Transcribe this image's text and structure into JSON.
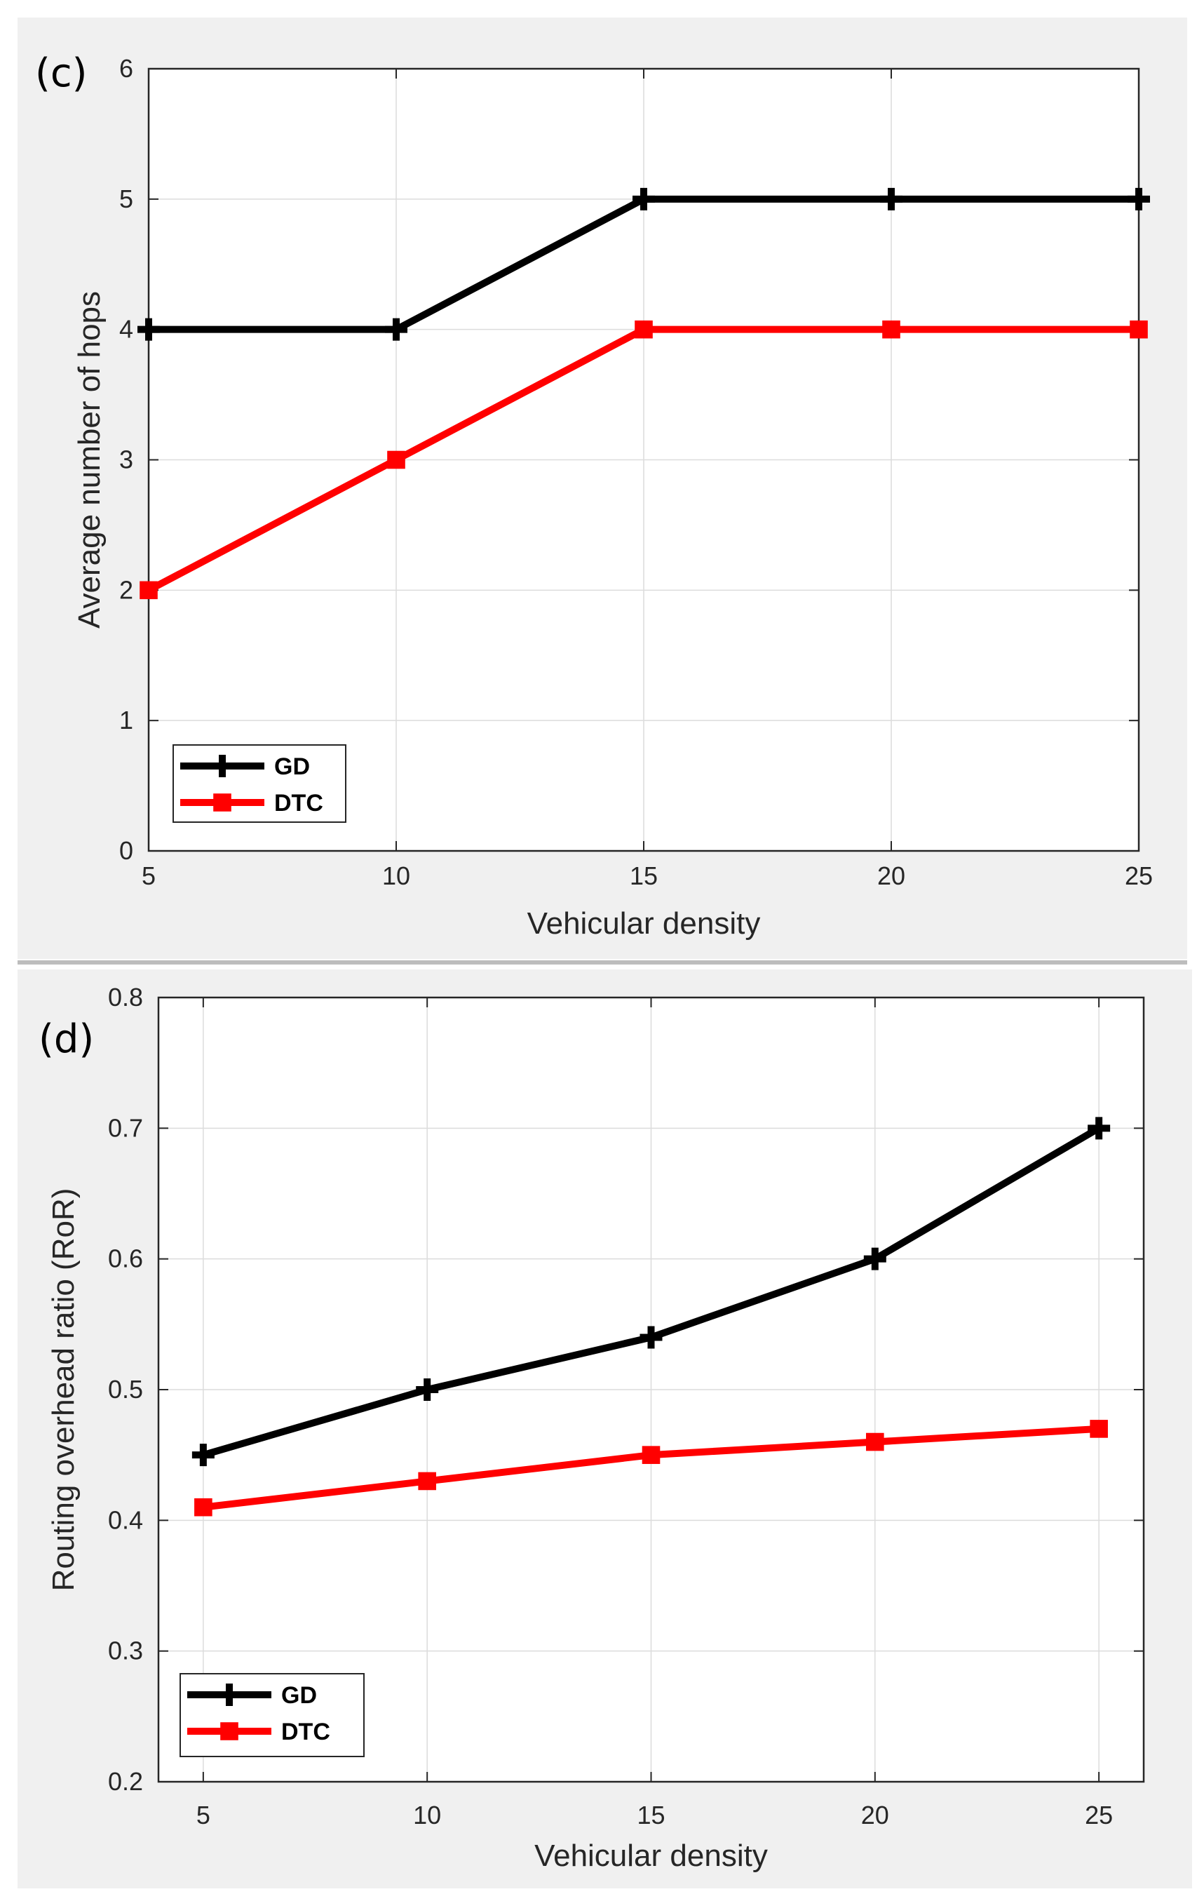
{
  "chart_data": [
    {
      "type": "line",
      "panel_label": "(c)",
      "xlabel": "Vehicular density",
      "ylabel": "Average number of hops",
      "x": [
        5,
        10,
        15,
        20,
        25
      ],
      "xlim": [
        5,
        25
      ],
      "ylim": [
        0,
        6
      ],
      "xticks": [
        5,
        10,
        15,
        20,
        25
      ],
      "yticks": [
        0,
        1,
        2,
        3,
        4,
        5,
        6
      ],
      "grid": true,
      "legend_position": "bottom-left",
      "series": [
        {
          "name": "GD",
          "color": "#000000",
          "marker": "plus",
          "values": [
            4,
            4,
            5,
            5,
            5
          ]
        },
        {
          "name": "DTC",
          "color": "#ff0000",
          "marker": "square",
          "values": [
            2,
            3,
            4,
            4,
            4
          ]
        }
      ]
    },
    {
      "type": "line",
      "panel_label": "(d)",
      "xlabel": "Vehicular density",
      "ylabel": "Routing overhead ratio (RoR)",
      "x": [
        5,
        10,
        15,
        20,
        25
      ],
      "xlim": [
        4,
        26
      ],
      "ylim": [
        0.2,
        0.8
      ],
      "xticks": [
        5,
        10,
        15,
        20,
        25
      ],
      "yticks": [
        0.2,
        0.3,
        0.4,
        0.5,
        0.6,
        0.7,
        0.8
      ],
      "grid": true,
      "legend_position": "bottom-left",
      "series": [
        {
          "name": "GD",
          "color": "#000000",
          "marker": "plus",
          "values": [
            0.45,
            0.5,
            0.54,
            0.6,
            0.7
          ]
        },
        {
          "name": "DTC",
          "color": "#ff0000",
          "marker": "square",
          "values": [
            0.41,
            0.43,
            0.45,
            0.46,
            0.47
          ]
        }
      ]
    }
  ]
}
